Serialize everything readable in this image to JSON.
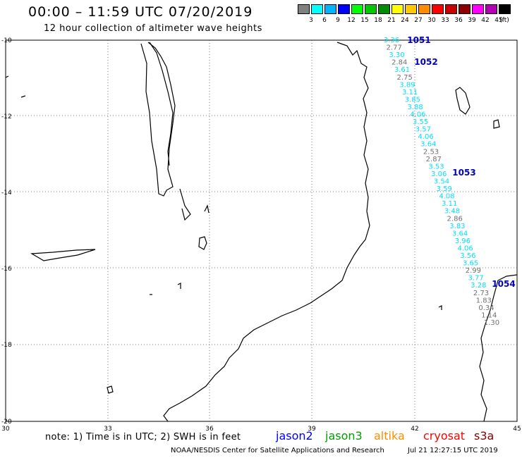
{
  "header": {
    "title": "00:00 – 11:59 UTC 07/20/2019",
    "subtitle": "12 hour collection of altimeter wave heights"
  },
  "legend": {
    "unit": "(ft)",
    "colors": [
      "#808080",
      "#00ffff",
      "#00b4ff",
      "#0000ff",
      "#00ff00",
      "#00c800",
      "#008c00",
      "#ffff00",
      "#ffc800",
      "#ff8c00",
      "#ff0000",
      "#c80000",
      "#8c0000",
      "#ff00ff",
      "#b400b4",
      "#000000"
    ],
    "labels": [
      "3",
      "6",
      "9",
      "12",
      "15",
      "18",
      "21",
      "24",
      "27",
      "30",
      "33",
      "36",
      "39",
      "42",
      "45",
      "70"
    ]
  },
  "axes": {
    "y_labels": [
      "-10",
      "-12",
      "-14",
      "-16",
      "-18",
      "-20"
    ],
    "x_labels": [
      "30",
      "33",
      "36",
      "39",
      "42",
      "45"
    ]
  },
  "passes": [
    "1051",
    "1052",
    "1053",
    "1054"
  ],
  "readings": [
    {
      "v": "3.36",
      "c": "#00e0ff"
    },
    {
      "v": "2.77",
      "c": "#707070"
    },
    {
      "v": "3.30",
      "c": "#00e0ff"
    },
    {
      "v": "2.84",
      "c": "#707070"
    },
    {
      "v": "3.61",
      "c": "#00e0ff"
    },
    {
      "v": "2.75",
      "c": "#707070"
    },
    {
      "v": "3.89",
      "c": "#00e0ff"
    },
    {
      "v": "3.11",
      "c": "#00e0ff"
    },
    {
      "v": "3.85",
      "c": "#00e0ff"
    },
    {
      "v": "3.88",
      "c": "#00e0ff"
    },
    {
      "v": "4.06",
      "c": "#00e0ff"
    },
    {
      "v": "3.55",
      "c": "#00e0ff"
    },
    {
      "v": "3.57",
      "c": "#00e0ff"
    },
    {
      "v": "4.06",
      "c": "#00e0ff"
    },
    {
      "v": "3.64",
      "c": "#00e0ff"
    },
    {
      "v": "2.53",
      "c": "#707070"
    },
    {
      "v": "2.87",
      "c": "#707070"
    },
    {
      "v": "3.53",
      "c": "#00e0ff"
    },
    {
      "v": "3.06",
      "c": "#00e0ff"
    },
    {
      "v": "3.54",
      "c": "#00e0ff"
    },
    {
      "v": "3.59",
      "c": "#00e0ff"
    },
    {
      "v": "4.08",
      "c": "#00e0ff"
    },
    {
      "v": "3.11",
      "c": "#00e0ff"
    },
    {
      "v": "3.48",
      "c": "#00e0ff"
    },
    {
      "v": "2.86",
      "c": "#707070"
    },
    {
      "v": "3.83",
      "c": "#00e0ff"
    },
    {
      "v": "3.64",
      "c": "#00e0ff"
    },
    {
      "v": "3.96",
      "c": "#00e0ff"
    },
    {
      "v": "4.06",
      "c": "#00e0ff"
    },
    {
      "v": "3.56",
      "c": "#00e0ff"
    },
    {
      "v": "3.65",
      "c": "#00e0ff"
    },
    {
      "v": "2.99",
      "c": "#707070"
    },
    {
      "v": "3.77",
      "c": "#00e0ff"
    },
    {
      "v": "3.28",
      "c": "#00e0ff"
    },
    {
      "v": "2.73",
      "c": "#707070"
    },
    {
      "v": "1.83",
      "c": "#707070"
    },
    {
      "v": "0.34",
      "c": "#707070"
    },
    {
      "v": "1.14",
      "c": "#707070"
    },
    {
      "v": "1.30",
      "c": "#707070"
    }
  ],
  "footer": {
    "note": "note: 1) Time is in UTC; 2) SWH is in feet",
    "satellites": [
      {
        "name": "jason2",
        "color": "#0000ff"
      },
      {
        "name": "jason3",
        "color": "#00a000"
      },
      {
        "name": "altika",
        "color": "#ff8c00"
      },
      {
        "name": "cryosat",
        "color": "#ff0000"
      },
      {
        "name": "s3a",
        "color": "#8c0000"
      }
    ],
    "credit": "NOAA/NESDIS Center for Satellite Applications and Research",
    "timestamp": "Jul 21 12:27:15 UTC 2019"
  }
}
